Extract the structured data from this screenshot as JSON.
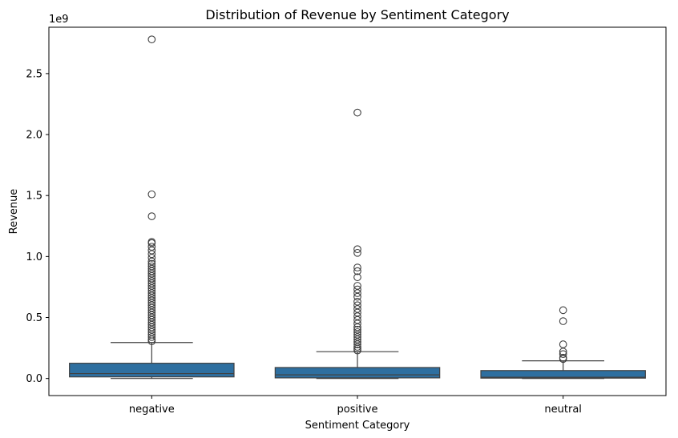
{
  "chart_data": {
    "type": "box",
    "title": "Distribution of Revenue by Sentiment Category",
    "xlabel": "Sentiment Category",
    "ylabel": "Revenue",
    "y_scale_label": "1e9",
    "y_unit_multiplier": 1000000000,
    "ylim": [
      -0.14,
      2.88
    ],
    "yticks": [
      0.0,
      0.5,
      1.0,
      1.5,
      2.0,
      2.5
    ],
    "ytick_labels": [
      "0.0",
      "0.5",
      "1.0",
      "1.5",
      "2.0",
      "2.5"
    ],
    "grid": false,
    "legend": "none",
    "box_color": "#2e6fa0",
    "categories": [
      "negative",
      "positive",
      "neutral"
    ],
    "boxes": [
      {
        "category": "negative",
        "whisker_low": 0.0,
        "q1": 0.013,
        "median": 0.04,
        "q3": 0.125,
        "whisker_high": 0.295,
        "outliers": [
          2.78,
          1.51,
          1.33,
          1.12,
          1.11,
          1.08,
          1.05,
          1.02,
          0.99,
          0.96,
          0.94,
          0.92,
          0.9,
          0.88,
          0.86,
          0.84,
          0.82,
          0.8,
          0.78,
          0.76,
          0.74,
          0.72,
          0.7,
          0.68,
          0.66,
          0.64,
          0.62,
          0.6,
          0.58,
          0.56,
          0.54,
          0.52,
          0.5,
          0.48,
          0.46,
          0.44,
          0.42,
          0.4,
          0.38,
          0.36,
          0.34,
          0.32,
          0.305
        ]
      },
      {
        "category": "positive",
        "whisker_low": 0.0,
        "q1": 0.005,
        "median": 0.03,
        "q3": 0.09,
        "whisker_high": 0.22,
        "outliers": [
          2.18,
          1.06,
          1.03,
          0.91,
          0.88,
          0.83,
          0.76,
          0.73,
          0.7,
          0.67,
          0.63,
          0.6,
          0.57,
          0.54,
          0.51,
          0.48,
          0.45,
          0.42,
          0.4,
          0.38,
          0.36,
          0.34,
          0.32,
          0.3,
          0.28,
          0.26,
          0.245,
          0.23
        ]
      },
      {
        "category": "neutral",
        "whisker_low": 0.0,
        "q1": 0.003,
        "median": 0.01,
        "q3": 0.065,
        "whisker_high": 0.145,
        "outliers": [
          0.56,
          0.47,
          0.28,
          0.22,
          0.2,
          0.17,
          0.16
        ]
      }
    ]
  }
}
